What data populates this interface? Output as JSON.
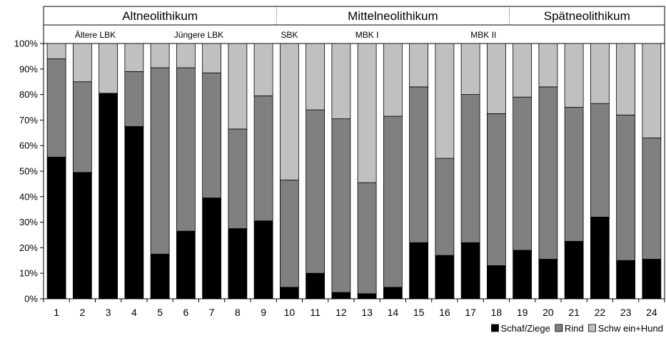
{
  "chart_data": {
    "type": "bar",
    "stacked": true,
    "categories": [
      "1",
      "2",
      "3",
      "4",
      "5",
      "6",
      "7",
      "8",
      "9",
      "10",
      "11",
      "12",
      "13",
      "14",
      "15",
      "16",
      "17",
      "18",
      "19",
      "20",
      "21",
      "22",
      "23",
      "24"
    ],
    "series": [
      {
        "name": "Schaf/Ziege",
        "color": "#000000",
        "values": [
          55.5,
          49.5,
          80.5,
          67.5,
          17.5,
          26.5,
          39.5,
          27.5,
          30.5,
          4.5,
          10,
          2.5,
          2,
          4.5,
          22,
          17,
          22,
          13,
          19,
          15.5,
          22.5,
          32,
          15,
          15.5
        ]
      },
      {
        "name": "Rind",
        "color": "#808080",
        "values": [
          38.5,
          35.5,
          0,
          21.5,
          73,
          64,
          49,
          39,
          49,
          42,
          64,
          68,
          43.5,
          67,
          61,
          38,
          58,
          59.5,
          60,
          67.5,
          52.5,
          44.5,
          57,
          47.5
        ]
      },
      {
        "name": "Schw ein+Hund",
        "color": "#c0c0c0",
        "values": [
          6,
          15,
          19.5,
          11,
          9.5,
          9.5,
          11.5,
          33.5,
          20.5,
          53.5,
          26,
          29.5,
          54.5,
          28.5,
          17,
          45,
          20,
          27.5,
          21,
          17,
          25,
          23.5,
          28,
          37
        ]
      }
    ],
    "yticks": [
      "0%",
      "10%",
      "20%",
      "30%",
      "40%",
      "50%",
      "60%",
      "70%",
      "80%",
      "90%",
      "100%"
    ],
    "ylim": [
      0,
      100
    ],
    "periods": [
      {
        "label": "Altneolithikum",
        "from": 1,
        "to": 9
      },
      {
        "label": "Mittelneolithikum",
        "from": 10,
        "to": 18
      },
      {
        "label": "Spätneolithikum",
        "from": 19,
        "to": 24
      }
    ],
    "cultures": [
      {
        "label": "Ältere LBK",
        "at": 2.5
      },
      {
        "label": "Jüngere LBK",
        "at": 6.5
      },
      {
        "label": "SBK",
        "at": 10
      },
      {
        "label": "MBK I",
        "at": 13
      },
      {
        "label": "MBK II",
        "at": 17.5
      }
    ],
    "legend_position": "bottom-right",
    "grid": false
  }
}
